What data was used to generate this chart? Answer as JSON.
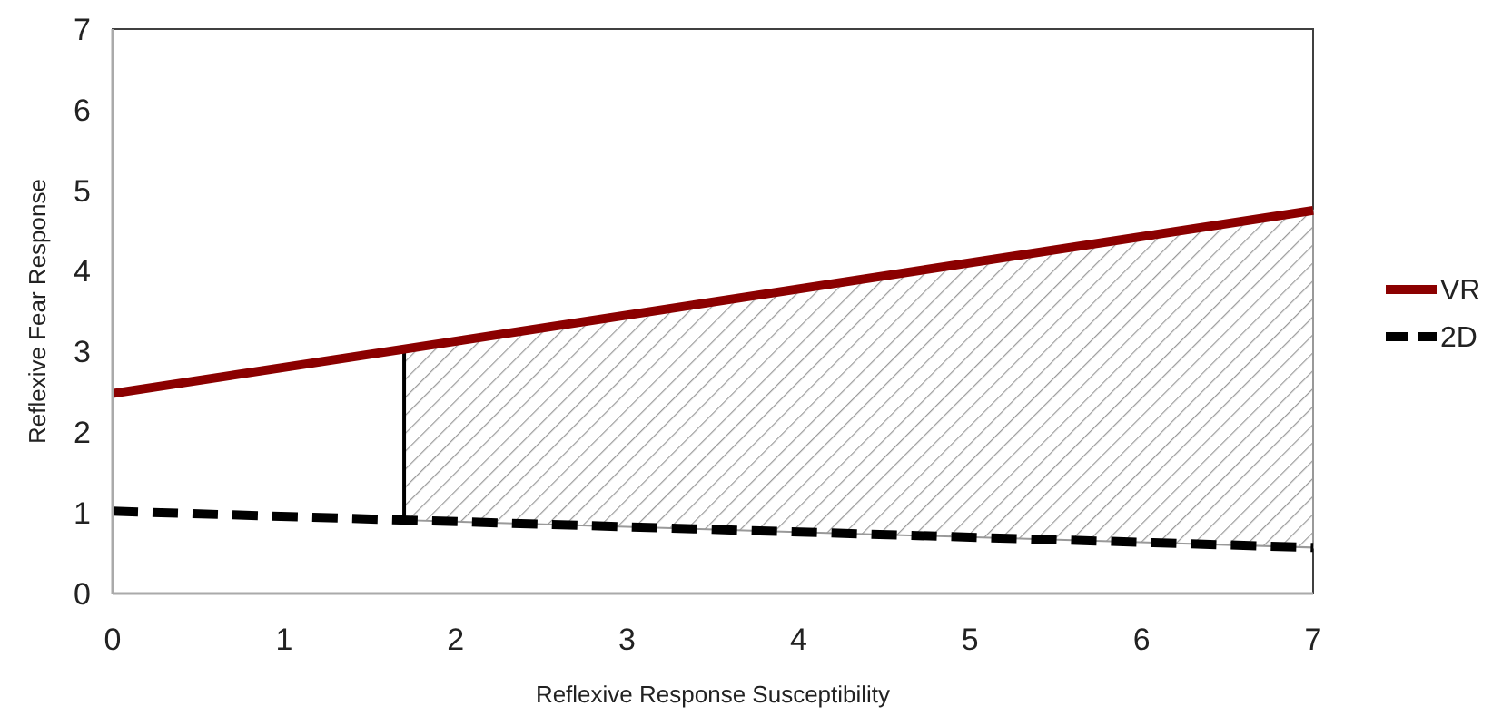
{
  "chart_data": {
    "type": "line",
    "xlabel": "Reflexive Response Susceptibility",
    "ylabel": "Reflexive Fear Response",
    "x": [
      0,
      7
    ],
    "series": [
      {
        "name": "VR",
        "color": "#8b0000",
        "values": [
          2.48,
          4.75
        ],
        "line_style": "solid"
      },
      {
        "name": "2D",
        "color": "#000000",
        "values": [
          1.02,
          0.57
        ],
        "line_style": "dashed"
      },
      {
        "type": "area",
        "color": "#999999",
        "x": [
          1.7,
          7
        ],
        "values": [
          null,
          null
        ],
        "lower": [
          0.91,
          0.57
        ],
        "upper": [
          3.03,
          4.75
        ]
      }
    ],
    "xlim": [
      0,
      7
    ],
    "xticks": [
      0,
      1,
      2,
      3,
      4,
      5,
      6,
      7
    ],
    "ylim": [
      0,
      7
    ],
    "yticks": [
      0,
      1,
      2,
      3,
      4,
      5,
      6,
      7
    ],
    "grid": false,
    "legend": "right",
    "marker": "none"
  }
}
